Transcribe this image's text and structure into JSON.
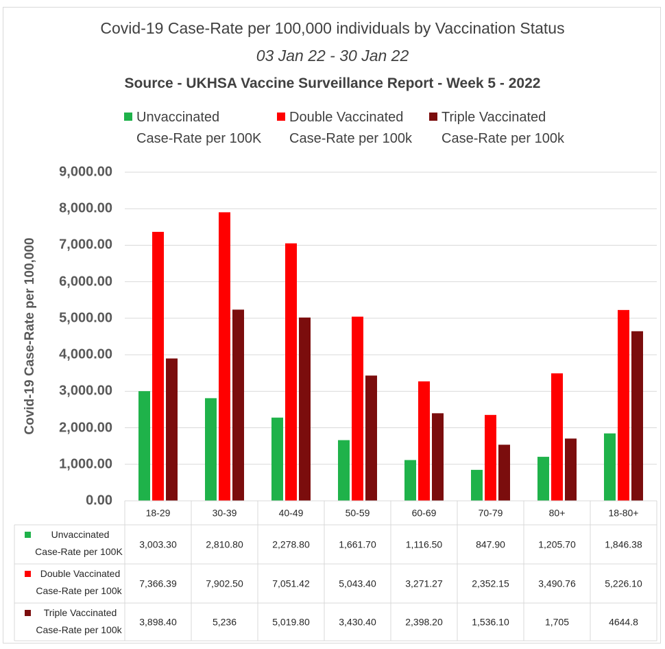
{
  "chart_data": {
    "type": "bar",
    "title": "Covid-19 Case-Rate per 100,000 individuals by Vaccination Status",
    "subtitle": "03 Jan 22 - 30 Jan 22",
    "source": "Source - UKHSA Vaccine Surveillance Report - Week 5 - 2022",
    "ylabel": "Covid-19 Case-Rate per 100,000",
    "xlabel": "",
    "ylim": [
      0,
      9000
    ],
    "yticks": [
      "0.00",
      "1,000.00",
      "2,000.00",
      "3,000.00",
      "4,000.00",
      "5,000.00",
      "6,000.00",
      "7,000.00",
      "8,000.00",
      "9,000.00"
    ],
    "grid": true,
    "legend_position": "top",
    "categories": [
      "18-29",
      "30-39",
      "40-49",
      "50-59",
      "60-69",
      "70-79",
      "80+",
      "18-80+"
    ],
    "series": [
      {
        "name_line1": "Unvaccinated",
        "name_line2": "Case-Rate per 100K",
        "color": "#1fb24a",
        "values": [
          3003.3,
          2810.8,
          2278.8,
          1661.7,
          1116.5,
          847.9,
          1205.7,
          1846.38
        ],
        "labels": [
          "3,003.30",
          "2,810.80",
          "2,278.80",
          "1,661.70",
          "1,116.50",
          "847.90",
          "1,205.70",
          "1,846.38"
        ]
      },
      {
        "name_line1": "Double Vaccinated",
        "name_line2": "Case-Rate per 100k",
        "color": "#ff0000",
        "values": [
          7366.39,
          7902.5,
          7051.42,
          5043.4,
          3271.27,
          2352.15,
          3490.76,
          5226.1
        ],
        "labels": [
          "7,366.39",
          "7,902.50",
          "7,051.42",
          "5,043.40",
          "3,271.27",
          "2,352.15",
          "3,490.76",
          "5,226.10"
        ]
      },
      {
        "name_line1": "Triple Vaccinated",
        "name_line2": "Case-Rate per 100k",
        "color": "#7b0d0d",
        "values": [
          3898.4,
          5236,
          5019.8,
          3430.4,
          2398.2,
          1536.1,
          1705,
          4644.8
        ],
        "labels": [
          "3,898.40",
          "5,236",
          "5,019.80",
          "3,430.40",
          "2,398.20",
          "1,536.10",
          "1,705",
          "4644.8"
        ]
      }
    ]
  }
}
